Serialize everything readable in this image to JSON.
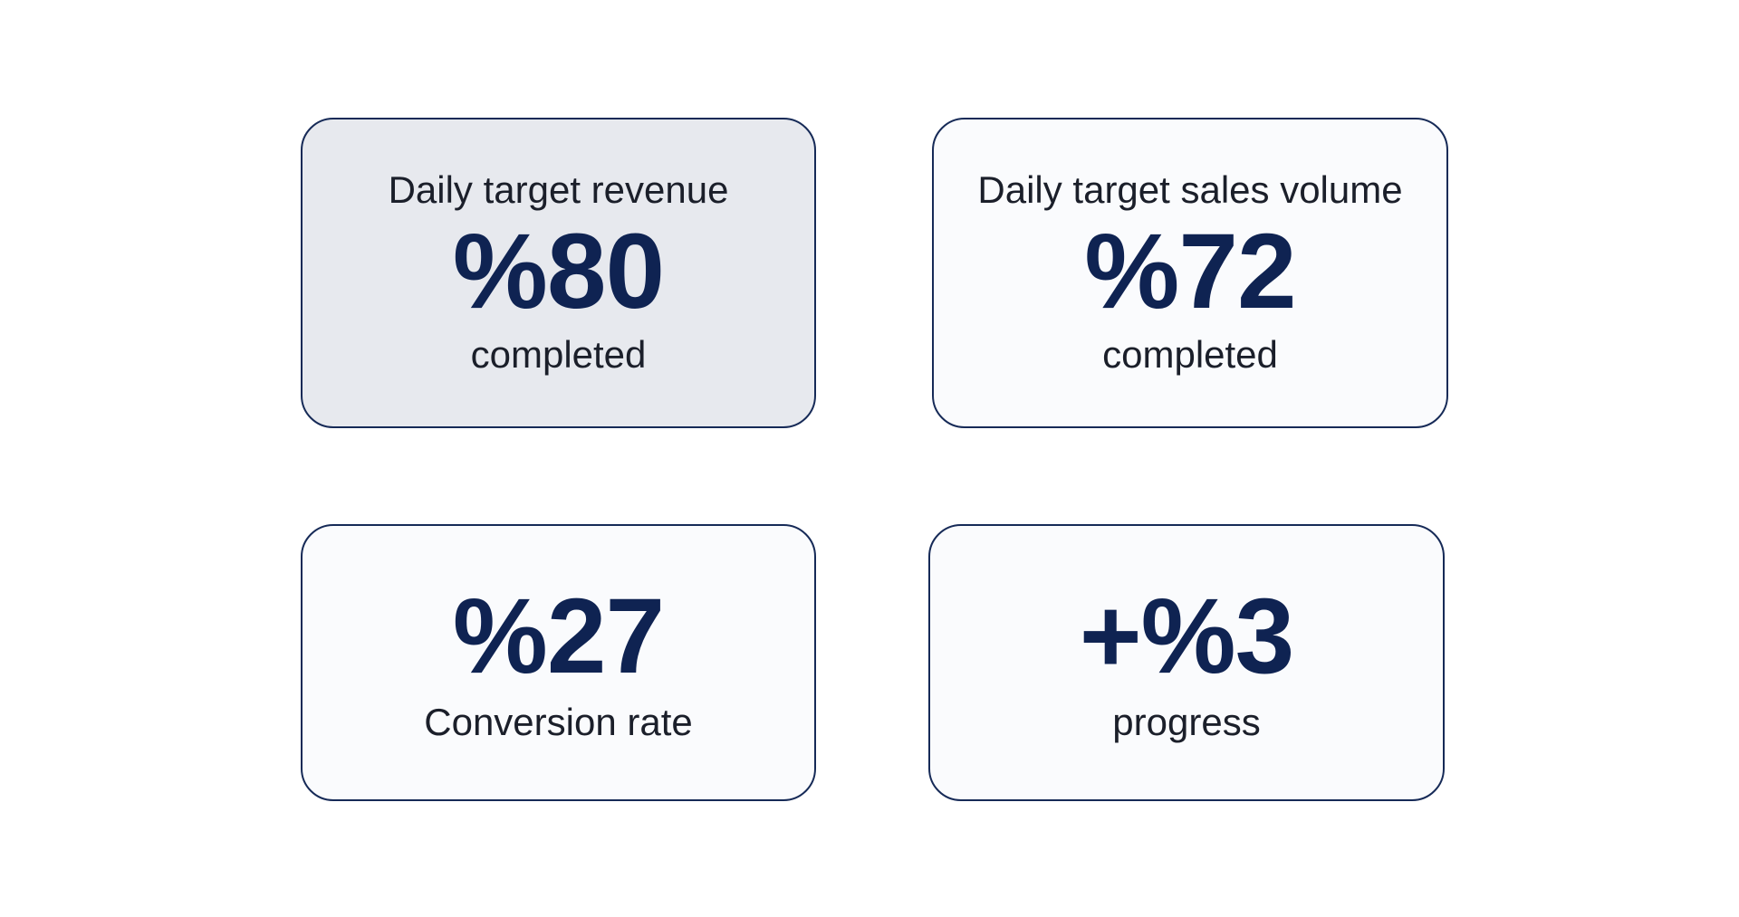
{
  "cards": [
    {
      "title": "Daily target revenue",
      "value": "%80",
      "caption": "completed",
      "selected": true
    },
    {
      "title": "Daily target sales volume",
      "value": "%72",
      "caption": "completed",
      "selected": false
    },
    {
      "value": "%27",
      "caption": "Conversion rate",
      "selected": false
    },
    {
      "value": "+%3",
      "caption": "progress",
      "selected": false
    }
  ],
  "colors": {
    "border": "#162a57",
    "value_text": "#0f2352",
    "selected_background": "#e7e9ee",
    "card_background": "#fafbfd"
  }
}
